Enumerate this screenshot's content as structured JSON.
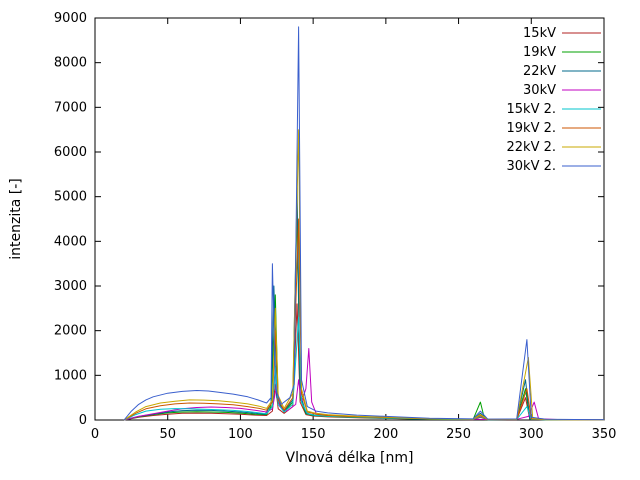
{
  "chart_data": {
    "type": "line",
    "title": "",
    "xlabel": "Vlnová délka [nm]",
    "ylabel": "intenzita [-]",
    "xlim": [
      0,
      350
    ],
    "ylim": [
      0,
      9000
    ],
    "xtick_step": 50,
    "ytick_step": 1000,
    "grid": false,
    "legend_position": "top-right",
    "series": [
      {
        "name": "15kV",
        "color": "#b22222",
        "points": [
          [
            20,
            0
          ],
          [
            30,
            60
          ],
          [
            40,
            100
          ],
          [
            50,
            130
          ],
          [
            60,
            150
          ],
          [
            70,
            155
          ],
          [
            80,
            150
          ],
          [
            90,
            140
          ],
          [
            100,
            130
          ],
          [
            110,
            110
          ],
          [
            118,
            100
          ],
          [
            122,
            200
          ],
          [
            124,
            800
          ],
          [
            126,
            250
          ],
          [
            130,
            150
          ],
          [
            136,
            300
          ],
          [
            139,
            2600
          ],
          [
            141,
            400
          ],
          [
            145,
            120
          ],
          [
            150,
            90
          ],
          [
            160,
            70
          ],
          [
            180,
            50
          ],
          [
            200,
            35
          ],
          [
            230,
            15
          ],
          [
            260,
            10
          ],
          [
            265,
            60
          ],
          [
            270,
            8
          ],
          [
            290,
            10
          ],
          [
            296,
            500
          ],
          [
            299,
            15
          ],
          [
            310,
            5
          ],
          [
            350,
            2
          ]
        ]
      },
      {
        "name": "19kV",
        "color": "#00a000",
        "points": [
          [
            20,
            0
          ],
          [
            30,
            70
          ],
          [
            40,
            120
          ],
          [
            50,
            160
          ],
          [
            60,
            180
          ],
          [
            70,
            185
          ],
          [
            80,
            180
          ],
          [
            90,
            170
          ],
          [
            100,
            155
          ],
          [
            110,
            130
          ],
          [
            118,
            120
          ],
          [
            121,
            300
          ],
          [
            124,
            2800
          ],
          [
            126,
            400
          ],
          [
            130,
            180
          ],
          [
            136,
            400
          ],
          [
            139,
            4700
          ],
          [
            141,
            500
          ],
          [
            145,
            140
          ],
          [
            150,
            100
          ],
          [
            160,
            80
          ],
          [
            180,
            55
          ],
          [
            200,
            40
          ],
          [
            230,
            18
          ],
          [
            260,
            12
          ],
          [
            265,
            400
          ],
          [
            268,
            10
          ],
          [
            290,
            12
          ],
          [
            296,
            700
          ],
          [
            299,
            20
          ],
          [
            310,
            6
          ],
          [
            350,
            2
          ]
        ]
      },
      {
        "name": "22kV",
        "color": "#00688b",
        "points": [
          [
            20,
            0
          ],
          [
            30,
            80
          ],
          [
            40,
            130
          ],
          [
            50,
            180
          ],
          [
            60,
            210
          ],
          [
            70,
            220
          ],
          [
            80,
            215
          ],
          [
            90,
            200
          ],
          [
            100,
            180
          ],
          [
            110,
            150
          ],
          [
            117,
            130
          ],
          [
            121,
            350
          ],
          [
            123,
            3000
          ],
          [
            125,
            500
          ],
          [
            130,
            200
          ],
          [
            136,
            450
          ],
          [
            139,
            5200
          ],
          [
            141,
            600
          ],
          [
            145,
            160
          ],
          [
            150,
            110
          ],
          [
            160,
            90
          ],
          [
            180,
            60
          ],
          [
            200,
            45
          ],
          [
            230,
            20
          ],
          [
            260,
            12
          ],
          [
            265,
            150
          ],
          [
            270,
            10
          ],
          [
            290,
            12
          ],
          [
            296,
            900
          ],
          [
            299,
            25
          ],
          [
            310,
            8
          ],
          [
            350,
            2
          ]
        ]
      },
      {
        "name": "30kV",
        "color": "#c000c0",
        "points": [
          [
            20,
            0
          ],
          [
            30,
            80
          ],
          [
            40,
            140
          ],
          [
            50,
            200
          ],
          [
            60,
            250
          ],
          [
            70,
            280
          ],
          [
            80,
            290
          ],
          [
            90,
            280
          ],
          [
            100,
            260
          ],
          [
            110,
            220
          ],
          [
            118,
            180
          ],
          [
            122,
            250
          ],
          [
            125,
            800
          ],
          [
            127,
            300
          ],
          [
            132,
            200
          ],
          [
            138,
            350
          ],
          [
            140,
            900
          ],
          [
            142,
            400
          ],
          [
            145,
            700
          ],
          [
            147,
            1600
          ],
          [
            149,
            400
          ],
          [
            152,
            150
          ],
          [
            160,
            100
          ],
          [
            180,
            70
          ],
          [
            200,
            50
          ],
          [
            230,
            25
          ],
          [
            260,
            15
          ],
          [
            270,
            12
          ],
          [
            290,
            15
          ],
          [
            298,
            80
          ],
          [
            302,
            400
          ],
          [
            305,
            30
          ],
          [
            320,
            8
          ],
          [
            350,
            3
          ]
        ]
      },
      {
        "name": "15kV 2.",
        "color": "#00c5cd",
        "points": [
          [
            20,
            0
          ],
          [
            28,
            120
          ],
          [
            35,
            200
          ],
          [
            45,
            240
          ],
          [
            55,
            255
          ],
          [
            65,
            250
          ],
          [
            75,
            240
          ],
          [
            85,
            230
          ],
          [
            95,
            215
          ],
          [
            105,
            190
          ],
          [
            113,
            160
          ],
          [
            118,
            140
          ],
          [
            122,
            300
          ],
          [
            124,
            1200
          ],
          [
            126,
            350
          ],
          [
            130,
            180
          ],
          [
            136,
            350
          ],
          [
            140,
            2300
          ],
          [
            142,
            400
          ],
          [
            146,
            140
          ],
          [
            152,
            100
          ],
          [
            160,
            85
          ],
          [
            180,
            60
          ],
          [
            200,
            45
          ],
          [
            230,
            20
          ],
          [
            260,
            12
          ],
          [
            265,
            80
          ],
          [
            270,
            10
          ],
          [
            290,
            12
          ],
          [
            297,
            300
          ],
          [
            300,
            15
          ],
          [
            310,
            6
          ],
          [
            350,
            2
          ]
        ]
      },
      {
        "name": "19kV 2.",
        "color": "#cc5500",
        "points": [
          [
            20,
            0
          ],
          [
            28,
            150
          ],
          [
            35,
            250
          ],
          [
            45,
            320
          ],
          [
            55,
            360
          ],
          [
            65,
            380
          ],
          [
            75,
            375
          ],
          [
            85,
            360
          ],
          [
            95,
            340
          ],
          [
            105,
            300
          ],
          [
            113,
            260
          ],
          [
            118,
            220
          ],
          [
            122,
            400
          ],
          [
            124,
            2000
          ],
          [
            126,
            450
          ],
          [
            130,
            220
          ],
          [
            136,
            500
          ],
          [
            140,
            4500
          ],
          [
            142,
            600
          ],
          [
            146,
            180
          ],
          [
            152,
            130
          ],
          [
            160,
            100
          ],
          [
            180,
            70
          ],
          [
            200,
            55
          ],
          [
            230,
            25
          ],
          [
            260,
            15
          ],
          [
            265,
            100
          ],
          [
            270,
            12
          ],
          [
            290,
            15
          ],
          [
            297,
            700
          ],
          [
            300,
            25
          ],
          [
            310,
            8
          ],
          [
            350,
            3
          ]
        ]
      },
      {
        "name": "22kV 2.",
        "color": "#c8a800",
        "points": [
          [
            20,
            0
          ],
          [
            28,
            180
          ],
          [
            35,
            300
          ],
          [
            45,
            380
          ],
          [
            55,
            420
          ],
          [
            65,
            450
          ],
          [
            75,
            445
          ],
          [
            85,
            430
          ],
          [
            95,
            400
          ],
          [
            105,
            360
          ],
          [
            113,
            310
          ],
          [
            118,
            260
          ],
          [
            122,
            450
          ],
          [
            124,
            2500
          ],
          [
            126,
            550
          ],
          [
            130,
            260
          ],
          [
            136,
            600
          ],
          [
            140,
            6500
          ],
          [
            142,
            700
          ],
          [
            146,
            200
          ],
          [
            152,
            150
          ],
          [
            160,
            120
          ],
          [
            180,
            85
          ],
          [
            200,
            65
          ],
          [
            230,
            30
          ],
          [
            260,
            18
          ],
          [
            265,
            120
          ],
          [
            270,
            15
          ],
          [
            290,
            18
          ],
          [
            298,
            1400
          ],
          [
            301,
            40
          ],
          [
            310,
            10
          ],
          [
            350,
            3
          ]
        ]
      },
      {
        "name": "30kV 2.",
        "color": "#3a5fcd",
        "points": [
          [
            20,
            0
          ],
          [
            25,
            200
          ],
          [
            30,
            350
          ],
          [
            35,
            450
          ],
          [
            40,
            520
          ],
          [
            50,
            600
          ],
          [
            60,
            640
          ],
          [
            70,
            660
          ],
          [
            78,
            650
          ],
          [
            85,
            620
          ],
          [
            95,
            580
          ],
          [
            105,
            520
          ],
          [
            112,
            450
          ],
          [
            118,
            380
          ],
          [
            121,
            500
          ],
          [
            122,
            3500
          ],
          [
            124,
            700
          ],
          [
            128,
            350
          ],
          [
            134,
            500
          ],
          [
            137,
            800
          ],
          [
            140,
            8800
          ],
          [
            142,
            900
          ],
          [
            146,
            300
          ],
          [
            152,
            200
          ],
          [
            160,
            160
          ],
          [
            180,
            110
          ],
          [
            200,
            80
          ],
          [
            230,
            40
          ],
          [
            260,
            25
          ],
          [
            265,
            200
          ],
          [
            270,
            20
          ],
          [
            290,
            25
          ],
          [
            297,
            1800
          ],
          [
            300,
            60
          ],
          [
            310,
            15
          ],
          [
            350,
            5
          ]
        ]
      }
    ]
  }
}
